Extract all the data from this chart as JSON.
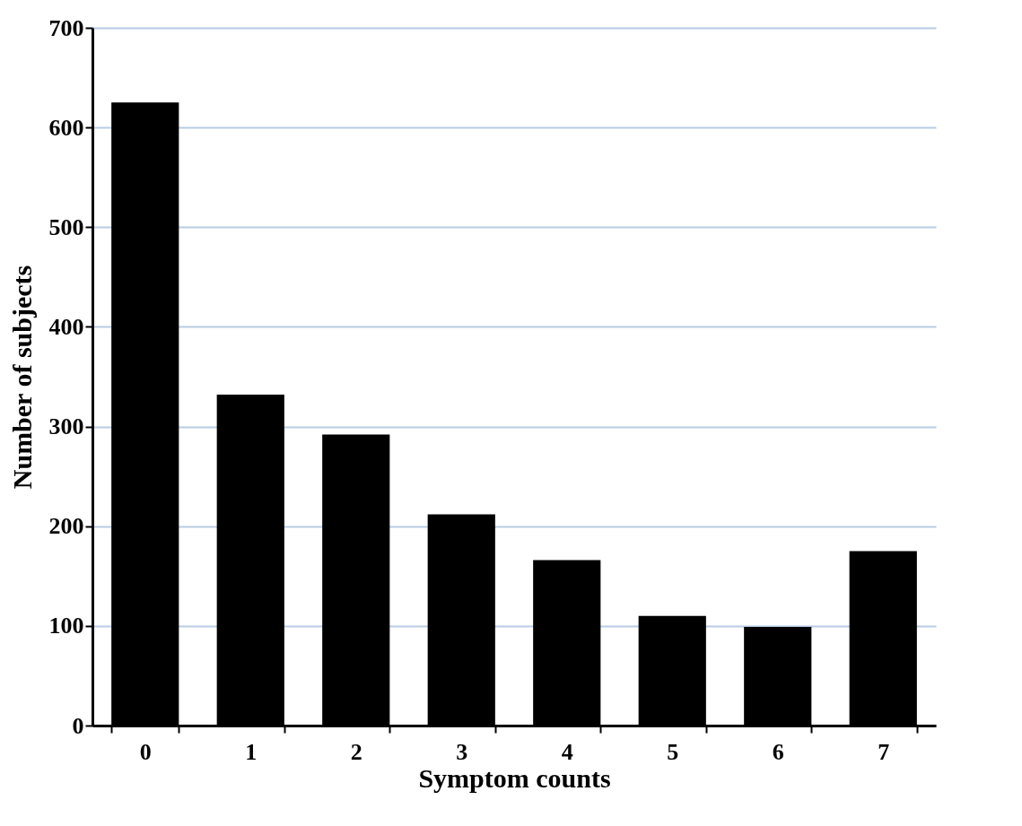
{
  "chart_data": {
    "type": "bar",
    "xlabel": "Symptom counts",
    "ylabel": "Number of subjects",
    "categories": [
      "0",
      "1",
      "2",
      "3",
      "4",
      "5",
      "6",
      "7"
    ],
    "values": [
      625,
      332,
      292,
      212,
      166,
      110,
      99,
      175
    ],
    "color": "#000000",
    "ylim": [
      0,
      700
    ],
    "yticks": [
      0,
      100,
      200,
      300,
      400,
      500,
      600,
      700
    ],
    "grid": "y"
  }
}
